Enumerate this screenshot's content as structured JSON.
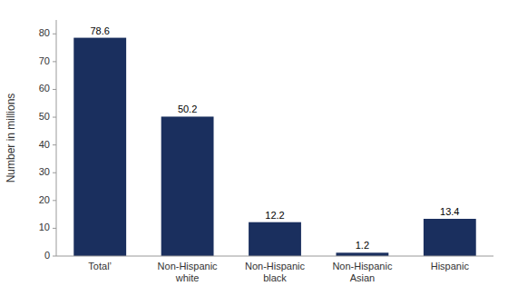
{
  "chart_data": {
    "type": "bar",
    "categories": [
      "Total’",
      "Non-Hispanic\nwhite",
      "Non-Hispanic\nblack",
      "Non-Hispanic\nAsian",
      "Hispanic"
    ],
    "values": [
      78.6,
      50.2,
      12.2,
      1.2,
      13.4
    ],
    "color": "#1a2f5e",
    "ylabel": "Number in millions",
    "ylim": [
      0,
      85
    ],
    "yticks": [
      0,
      10,
      20,
      30,
      40,
      50,
      60,
      70,
      80
    ],
    "grid": false,
    "data_labels": true
  }
}
